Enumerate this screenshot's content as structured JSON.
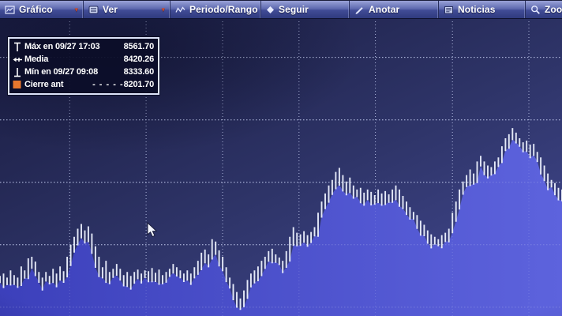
{
  "menu": {
    "items": [
      {
        "label": "Gráfico",
        "icon": "chart-window-icon",
        "has_dropdown": true
      },
      {
        "label": "Ver",
        "icon": "list-icon",
        "has_dropdown": true
      },
      {
        "label": "Periodo/Rango",
        "icon": "trend-icon",
        "has_dropdown": true
      },
      {
        "label": "Seguir",
        "icon": "diamond-icon",
        "has_dropdown": false
      },
      {
        "label": "Anotar",
        "icon": "pencil-icon",
        "has_dropdown": false
      },
      {
        "label": "Noticias",
        "icon": "news-icon",
        "has_dropdown": false
      },
      {
        "label": "Zoom",
        "icon": "magnifier-icon",
        "has_dropdown": false
      }
    ]
  },
  "legend": {
    "rows": [
      {
        "icon": "max-marker-icon",
        "label": "Máx en 09/27 17:03",
        "value": "8561.70"
      },
      {
        "icon": "mean-marker-icon",
        "label": "Media",
        "value": "8420.26"
      },
      {
        "icon": "min-marker-icon",
        "label": "Mín en 09/27 09:08",
        "value": "8333.60"
      },
      {
        "icon": "prev-close-swatch",
        "label": "Cierre ant",
        "dashes": "- - - - -",
        "value": "8201.70"
      }
    ]
  },
  "chart_data": {
    "type": "bar",
    "subtype": "intraday high-low price bars with filled area below",
    "title": "",
    "stats": {
      "max": 8561.7,
      "max_time": "09/27 17:03",
      "mean": 8420.26,
      "min": 8333.6,
      "min_time": "09/27 09:08",
      "prev_close": 8201.7
    },
    "ylim": [
      8327,
      8698
    ],
    "grid": {
      "h_prices": [
        8650,
        8572,
        8494,
        8416,
        8338
      ],
      "v_fracs": [
        0.124,
        0.26,
        0.396,
        0.532,
        0.668,
        0.805,
        0.941
      ]
    },
    "highs": [
      8377,
      8380,
      8375,
      8384,
      8378,
      8375,
      8389,
      8384,
      8399,
      8401,
      8395,
      8382,
      8375,
      8382,
      8377,
      8386,
      8380,
      8389,
      8383,
      8401,
      8416,
      8426,
      8436,
      8442,
      8434,
      8439,
      8430,
      8414,
      8401,
      8388,
      8396,
      8382,
      8386,
      8392,
      8386,
      8378,
      8382,
      8377,
      8382,
      8385,
      8380,
      8384,
      8383,
      8387,
      8381,
      8385,
      8378,
      8382,
      8386,
      8392,
      8388,
      8384,
      8380,
      8384,
      8380,
      8388,
      8396,
      8406,
      8410,
      8404,
      8423,
      8420,
      8409,
      8401,
      8388,
      8375,
      8367,
      8357,
      8349,
      8359,
      8372,
      8380,
      8384,
      8389,
      8396,
      8401,
      8408,
      8411,
      8404,
      8400,
      8396,
      8408,
      8426,
      8438,
      8431,
      8429,
      8433,
      8428,
      8432,
      8438,
      8456,
      8470,
      8480,
      8490,
      8497,
      8507,
      8512,
      8503,
      8495,
      8500,
      8490,
      8485,
      8487,
      8481,
      8485,
      8482,
      8478,
      8485,
      8480,
      8483,
      8479,
      8485,
      8490,
      8485,
      8477,
      8470,
      8463,
      8457,
      8453,
      8446,
      8441,
      8434,
      8429,
      8426,
      8423,
      8428,
      8431,
      8436,
      8456,
      8470,
      8485,
      8495,
      8503,
      8510,
      8505,
      8520,
      8527,
      8520,
      8515,
      8513,
      8520,
      8525,
      8539,
      8549,
      8554,
      8561.7,
      8556,
      8549,
      8544,
      8546,
      8541,
      8542,
      8532,
      8525,
      8515,
      8505,
      8497,
      8493,
      8487,
      8485
    ]
  },
  "colors": {
    "area_start": "#3c40bb",
    "area_end": "#5d63dd",
    "bar_stroke": "#eef2ff",
    "grid_dot": "#c9d2f5",
    "dropdown_arrow": "#c84b2f",
    "prev_close_swatch": "#e8772e"
  }
}
